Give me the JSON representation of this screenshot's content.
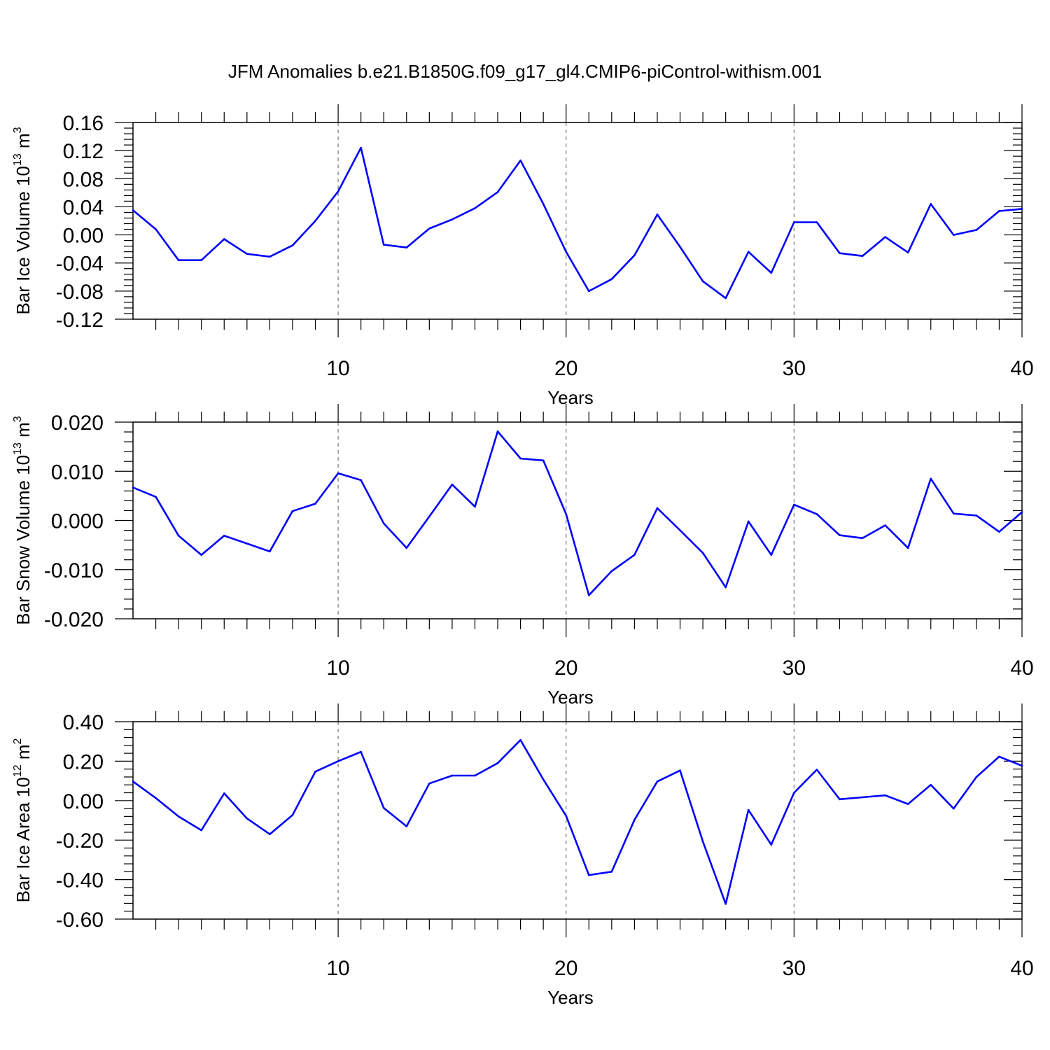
{
  "title": "JFM Anomalies b.e21.B1850G.f09_g17_gl4.CMIP6-piControl-withism.001",
  "line_color": "#0000ff",
  "chart_data": [
    {
      "type": "line",
      "ylabel": "Bar Ice Volume 10",
      "ylabel_exp": "13",
      "ylabel_unit": " m",
      "ylabel_unit_exp": "3",
      "xlabel": "Years",
      "xlim": [
        1,
        40
      ],
      "ylim": [
        -0.12,
        0.16
      ],
      "yticks": [
        -0.12,
        -0.08,
        -0.04,
        0.0,
        0.04,
        0.08,
        0.12,
        0.16
      ],
      "ytick_labels": [
        "-0.12",
        "-0.08",
        "-0.04",
        "0.00",
        "0.04",
        "0.08",
        "0.12",
        "0.16"
      ],
      "xticks": [
        10,
        20,
        30,
        40
      ],
      "xtick_labels": [
        "10",
        "20",
        "30",
        "40"
      ],
      "grid_x": [
        10,
        20,
        30
      ],
      "x": [
        1,
        2,
        3,
        4,
        5,
        6,
        7,
        8,
        9,
        10,
        11,
        12,
        13,
        14,
        15,
        16,
        17,
        18,
        19,
        20,
        21,
        22,
        23,
        24,
        25,
        26,
        27,
        28,
        29,
        30,
        31,
        32,
        33,
        34,
        35,
        36,
        37,
        38,
        39,
        40
      ],
      "values": [
        0.035,
        0.008,
        -0.036,
        -0.036,
        -0.006,
        -0.027,
        -0.031,
        -0.015,
        0.02,
        0.062,
        0.124,
        -0.014,
        -0.018,
        0.009,
        0.022,
        0.038,
        0.061,
        0.106,
        0.044,
        -0.024,
        -0.08,
        -0.063,
        -0.029,
        0.029,
        -0.017,
        -0.066,
        -0.09,
        -0.024,
        -0.054,
        0.018,
        0.018,
        -0.026,
        -0.03,
        -0.003,
        -0.025,
        0.044,
        0.0,
        0.007,
        0.034,
        0.037
      ]
    },
    {
      "type": "line",
      "ylabel": "Bar Snow Volume 10",
      "ylabel_exp": "13",
      "ylabel_unit": " m",
      "ylabel_unit_exp": "3",
      "xlabel": "Years",
      "xlim": [
        1,
        40
      ],
      "ylim": [
        -0.02,
        0.02
      ],
      "yticks": [
        -0.02,
        -0.01,
        0.0,
        0.01,
        0.02
      ],
      "ytick_labels": [
        "-0.020",
        "-0.010",
        "0.000",
        "0.010",
        "0.020"
      ],
      "xticks": [
        10,
        20,
        30,
        40
      ],
      "xtick_labels": [
        "10",
        "20",
        "30",
        "40"
      ],
      "grid_x": [
        10,
        20,
        30
      ],
      "x": [
        1,
        2,
        3,
        4,
        5,
        6,
        7,
        8,
        9,
        10,
        11,
        12,
        13,
        14,
        15,
        16,
        17,
        18,
        19,
        20,
        21,
        22,
        23,
        24,
        25,
        26,
        27,
        28,
        29,
        30,
        31,
        32,
        33,
        34,
        35,
        36,
        37,
        38,
        39,
        40
      ],
      "values": [
        0.0067,
        0.0048,
        -0.0031,
        -0.007,
        -0.0031,
        -0.0047,
        -0.0063,
        0.0019,
        0.0034,
        0.0096,
        0.0082,
        -0.0006,
        -0.0056,
        0.0008,
        0.0073,
        0.0028,
        0.0181,
        0.0126,
        0.0122,
        0.0013,
        -0.0152,
        -0.0103,
        -0.007,
        0.0025,
        -0.002,
        -0.0066,
        -0.0136,
        -0.0002,
        -0.007,
        0.0032,
        0.0013,
        -0.003,
        -0.0036,
        -0.001,
        -0.0056,
        0.0085,
        0.0014,
        0.001,
        -0.0023,
        0.0017
      ]
    },
    {
      "type": "line",
      "ylabel": "Bar Ice Area 10",
      "ylabel_exp": "12",
      "ylabel_unit": " m",
      "ylabel_unit_exp": "2",
      "xlabel": "Years",
      "xlim": [
        1,
        40
      ],
      "ylim": [
        -0.6,
        0.4
      ],
      "yticks": [
        -0.6,
        -0.4,
        -0.2,
        0.0,
        0.2,
        0.4
      ],
      "ytick_labels": [
        "-0.60",
        "-0.40",
        "-0.20",
        "0.00",
        "0.20",
        "0.40"
      ],
      "xticks": [
        10,
        20,
        30,
        40
      ],
      "xtick_labels": [
        "10",
        "20",
        "30",
        "40"
      ],
      "grid_x": [
        10,
        20,
        30
      ],
      "x": [
        1,
        2,
        3,
        4,
        5,
        6,
        7,
        8,
        9,
        10,
        11,
        12,
        13,
        14,
        15,
        16,
        17,
        18,
        19,
        20,
        21,
        22,
        23,
        24,
        25,
        26,
        27,
        28,
        29,
        30,
        31,
        32,
        33,
        34,
        35,
        36,
        37,
        38,
        39,
        40
      ],
      "values": [
        0.097,
        0.013,
        -0.08,
        -0.15,
        0.037,
        -0.09,
        -0.17,
        -0.073,
        0.147,
        0.2,
        0.247,
        -0.037,
        -0.13,
        0.087,
        0.127,
        0.127,
        0.19,
        0.307,
        0.107,
        -0.077,
        -0.377,
        -0.36,
        -0.097,
        0.097,
        0.153,
        -0.207,
        -0.523,
        -0.047,
        -0.223,
        0.04,
        0.157,
        0.007,
        0.017,
        0.027,
        -0.017,
        0.08,
        -0.04,
        0.12,
        0.223,
        0.177
      ]
    }
  ]
}
